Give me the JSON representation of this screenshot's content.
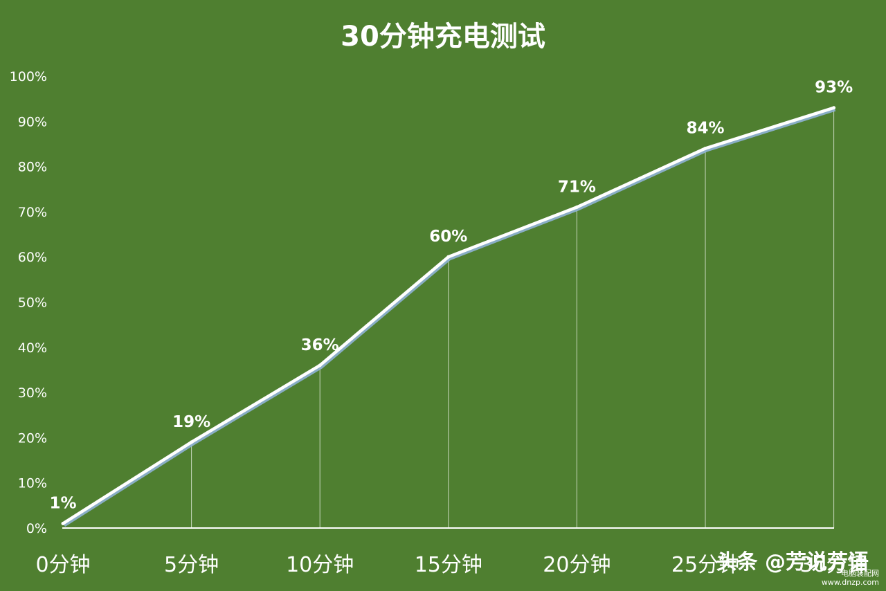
{
  "chart_data": {
    "type": "line",
    "title": "30分钟充电测试",
    "categories": [
      "0分钟",
      "5分钟",
      "10分钟",
      "15分钟",
      "20分钟",
      "25分钟",
      "30分钟"
    ],
    "values": [
      1,
      19,
      36,
      60,
      71,
      84,
      93
    ],
    "data_labels": [
      "1%",
      "19%",
      "36%",
      "60%",
      "71%",
      "84%",
      "93%"
    ],
    "y_ticks": [
      "0%",
      "10%",
      "20%",
      "30%",
      "40%",
      "50%",
      "60%",
      "70%",
      "80%",
      "90%",
      "100%"
    ],
    "ylim": [
      0,
      100
    ],
    "grid": false,
    "drop_lines": true
  },
  "colors": {
    "background": "#4f7f30",
    "line": "#ffffff",
    "line_shadow": "#8fb3d6",
    "text": "#ffffff"
  },
  "watermark": {
    "text": "头条 @芳说芳语",
    "url": "电脑装配网\nwww.dnzp.com"
  }
}
